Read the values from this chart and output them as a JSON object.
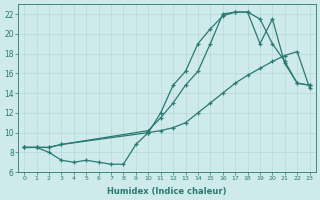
{
  "xlabel": "Humidex (Indice chaleur)",
  "bg_color": "#ceeaea",
  "grid_color": "#b8d8d8",
  "line_color": "#2a7a72",
  "xlim": [
    -0.5,
    23.5
  ],
  "ylim": [
    6,
    23
  ],
  "xticks": [
    0,
    1,
    2,
    3,
    4,
    5,
    6,
    7,
    8,
    9,
    10,
    11,
    12,
    13,
    14,
    15,
    16,
    17,
    18,
    19,
    20,
    21,
    22,
    23
  ],
  "yticks": [
    6,
    8,
    10,
    12,
    14,
    16,
    18,
    20,
    22
  ],
  "curve1_x": [
    0,
    1,
    2,
    3,
    4,
    5,
    6,
    7,
    8,
    9,
    10,
    11,
    12,
    13,
    14,
    15,
    16,
    17,
    18,
    19,
    20,
    21,
    22,
    23
  ],
  "curve1_y": [
    8.5,
    8.5,
    8.0,
    7.2,
    7.0,
    7.2,
    7.0,
    6.8,
    6.8,
    8.8,
    10.0,
    12.0,
    14.8,
    16.2,
    19.0,
    20.5,
    21.8,
    22.2,
    22.2,
    19.0,
    21.5,
    17.0,
    15.0,
    14.8
  ],
  "curve2_x": [
    0,
    1,
    2,
    3,
    10,
    11,
    12,
    13,
    14,
    15,
    16,
    17,
    18,
    19,
    20,
    21,
    22,
    23
  ],
  "curve2_y": [
    8.5,
    8.5,
    8.5,
    8.8,
    10.0,
    10.2,
    10.5,
    11.0,
    12.0,
    13.0,
    14.0,
    15.0,
    15.8,
    16.5,
    17.2,
    17.8,
    18.2,
    14.5
  ],
  "curve3_x": [
    0,
    1,
    2,
    3,
    10,
    11,
    12,
    13,
    14,
    15,
    16,
    17,
    18,
    19,
    20,
    21,
    22,
    23
  ],
  "curve3_y": [
    8.5,
    8.5,
    8.5,
    8.8,
    10.2,
    11.5,
    13.0,
    14.8,
    16.2,
    19.0,
    22.0,
    22.2,
    22.2,
    21.5,
    19.0,
    17.2,
    15.0,
    14.8
  ]
}
